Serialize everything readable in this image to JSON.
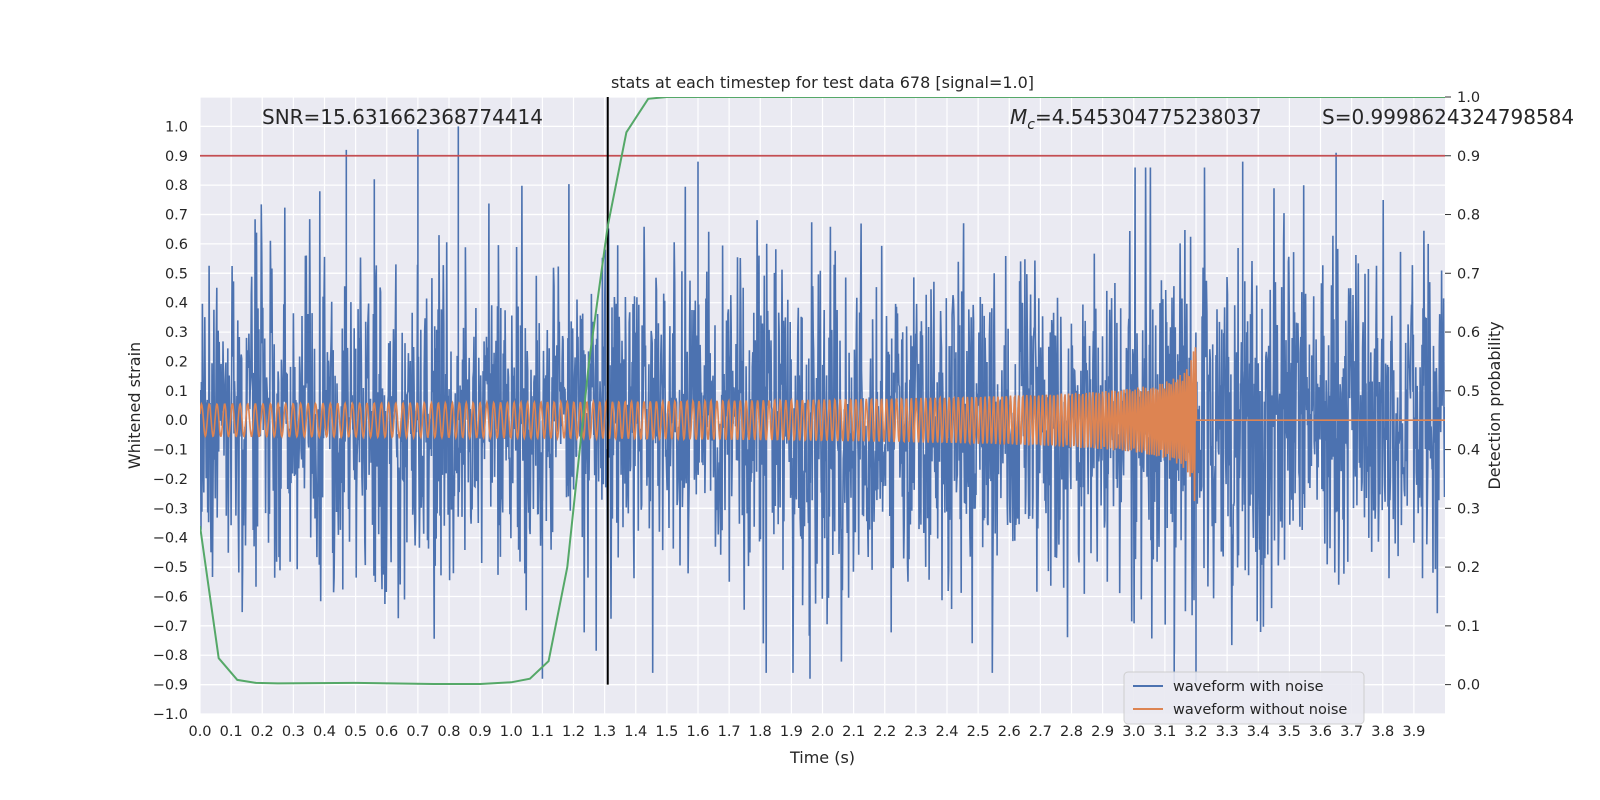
{
  "chart_data": {
    "type": "line",
    "title": "stats at each timestep for test data 678 [signal=1.0]",
    "xlabel": "Time (s)",
    "ylabel": "Whitened strain",
    "y2label": "Detection probability",
    "xlim": [
      0.0,
      4.0
    ],
    "ylim": [
      -1.0,
      1.1
    ],
    "y2lim": [
      -0.05,
      1.0
    ],
    "xticks": [
      "0.0",
      "0.1",
      "0.2",
      "0.3",
      "0.4",
      "0.5",
      "0.6",
      "0.7",
      "0.8",
      "0.9",
      "1.0",
      "1.1",
      "1.2",
      "1.3",
      "1.4",
      "1.5",
      "1.6",
      "1.7",
      "1.8",
      "1.9",
      "2.0",
      "2.1",
      "2.2",
      "2.3",
      "2.4",
      "2.5",
      "2.6",
      "2.7",
      "2.8",
      "2.9",
      "3.0",
      "3.1",
      "3.2",
      "3.3",
      "3.4",
      "3.5",
      "3.6",
      "3.7",
      "3.8",
      "3.9"
    ],
    "yticks": [
      "−1.0",
      "−0.9",
      "−0.8",
      "−0.7",
      "−0.6",
      "−0.5",
      "−0.4",
      "−0.3",
      "−0.2",
      "−0.1",
      "0.0",
      "0.1",
      "0.2",
      "0.3",
      "0.4",
      "0.5",
      "0.6",
      "0.7",
      "0.8",
      "0.9",
      "1.0"
    ],
    "y2ticks": [
      "0.0",
      "0.1",
      "0.2",
      "0.3",
      "0.4",
      "0.5",
      "0.6",
      "0.7",
      "0.8",
      "0.9",
      "1.0"
    ],
    "grid": true,
    "legend_position": "lower-right",
    "annotations": {
      "snr": "SNR=15.631662368774414",
      "mc_symbol": "M",
      "mc_sub": "c",
      "mc_value": "=4.545304775238037",
      "s": "S=0.9998624324798584"
    },
    "threshold_prob": 0.9,
    "marker_time": 1.31,
    "colors": {
      "noise": "#4c72b0",
      "clean": "#dd8452",
      "prob": "#55a868",
      "threshold": "#c44e52",
      "marker": "#000000",
      "axes_bg": "#eaeaf2"
    },
    "series": [
      {
        "name": "waveform with noise",
        "color": "#4c72b0",
        "noise_std": 0.28,
        "peak_points": [
          {
            "x": 0.47,
            "y": 0.92
          },
          {
            "x": 0.56,
            "y": 0.82
          },
          {
            "x": 0.7,
            "y": 0.99
          },
          {
            "x": 0.83,
            "y": 1.0
          },
          {
            "x": 1.6,
            "y": 0.88
          },
          {
            "x": 3.35,
            "y": 0.88
          },
          {
            "x": 3.65,
            "y": 0.91
          },
          {
            "x": 1.1,
            "y": -0.88
          },
          {
            "x": 1.96,
            "y": -0.88
          },
          {
            "x": 3.13,
            "y": -0.9
          },
          {
            "x": 3.2,
            "y": -0.89
          }
        ]
      },
      {
        "name": "waveform without noise",
        "color": "#dd8452",
        "merger_time": 3.2,
        "start_amplitude": 0.055,
        "end_amplitude": 0.31,
        "start_freq_hz": 40,
        "end_freq_hz": 140
      },
      {
        "name": "detection probability",
        "color": "#55a868",
        "x": [
          0.0,
          0.06,
          0.12,
          0.18,
          0.25,
          0.5,
          0.75,
          0.9,
          1.0,
          1.06,
          1.12,
          1.18,
          1.25,
          1.31,
          1.37,
          1.44,
          1.5,
          4.0
        ],
        "y": [
          0.27,
          0.045,
          0.008,
          0.003,
          0.002,
          0.003,
          0.001,
          0.001,
          0.004,
          0.01,
          0.04,
          0.2,
          0.55,
          0.78,
          0.94,
          0.997,
          1.0,
          1.0
        ]
      }
    ]
  }
}
